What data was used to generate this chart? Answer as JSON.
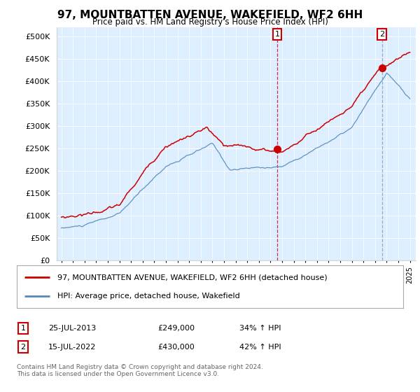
{
  "title": "97, MOUNTBATTEN AVENUE, WAKEFIELD, WF2 6HH",
  "subtitle": "Price paid vs. HM Land Registry's House Price Index (HPI)",
  "legend_line1": "97, MOUNTBATTEN AVENUE, WAKEFIELD, WF2 6HH (detached house)",
  "legend_line2": "HPI: Average price, detached house, Wakefield",
  "transaction1_date": "25-JUL-2013",
  "transaction1_price": "£249,000",
  "transaction1_hpi": "34% ↑ HPI",
  "transaction2_date": "15-JUL-2022",
  "transaction2_price": "£430,000",
  "transaction2_hpi": "42% ↑ HPI",
  "footer": "Contains HM Land Registry data © Crown copyright and database right 2024.\nThis data is licensed under the Open Government Licence v3.0.",
  "red_color": "#cc0000",
  "blue_color": "#5588bb",
  "vline2_color": "#8899bb",
  "bg_fill_color": "#ddeeff",
  "ylim_min": 0,
  "ylim_max": 520000,
  "yticks": [
    0,
    50000,
    100000,
    150000,
    200000,
    250000,
    300000,
    350000,
    400000,
    450000,
    500000
  ],
  "ytick_labels": [
    "£0",
    "£50K",
    "£100K",
    "£150K",
    "£200K",
    "£250K",
    "£300K",
    "£350K",
    "£400K",
    "£450K",
    "£500K"
  ],
  "x_start_year": 1995,
  "x_end_year": 2025
}
